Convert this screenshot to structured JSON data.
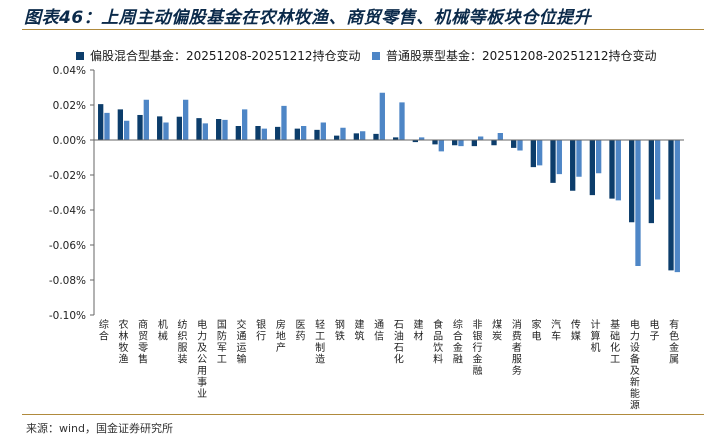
{
  "title": "图表46：上周主动偏股基金在农林牧渔、商贸零售、机械等板块仓位提升",
  "source": "来源：wind，国金证券研究所",
  "colors": {
    "series1": "#0c3d6b",
    "series2": "#4e86c6",
    "axis": "#666666",
    "rule": "#b08a3c"
  },
  "chart_data": {
    "type": "bar",
    "title": "图表46：上周主动偏股基金在农林牧渔、商贸零售、机械等板块仓位提升",
    "xlabel": "",
    "ylabel": "",
    "ylim": [
      -0.1,
      0.04
    ],
    "yticks": [
      0.04,
      0.02,
      0.0,
      -0.02,
      -0.04,
      -0.06,
      -0.08,
      -0.1
    ],
    "ytick_labels": [
      "0.04%",
      "0.02%",
      "0.00%",
      "-0.02%",
      "-0.04%",
      "-0.06%",
      "-0.08%",
      "-0.10%"
    ],
    "legend_position": "top",
    "categories": [
      "综合",
      "农林牧渔",
      "商贸零售",
      "机械",
      "纺织服装",
      "电力及公用事业",
      "国防军工",
      "交通运输",
      "银行",
      "房地产",
      "医药",
      "轻工制造",
      "钢铁",
      "建筑",
      "通信",
      "石油石化",
      "建材",
      "食品饮料",
      "综合金融",
      "非银行金融",
      "煤炭",
      "消费者服务",
      "家电",
      "汽车",
      "传媒",
      "计算机",
      "基础化工",
      "电力设备及新能源",
      "电子",
      "有色金属"
    ],
    "series": [
      {
        "name": "偏股混合型基金：20251208-20251212持仓变动",
        "values": [
          0.0205,
          0.0175,
          0.0143,
          0.0135,
          0.0133,
          0.0125,
          0.012,
          0.008,
          0.008,
          0.0075,
          0.0065,
          0.0058,
          0.0025,
          0.0038,
          0.0035,
          0.0015,
          -0.0012,
          -0.0025,
          -0.003,
          -0.0035,
          -0.003,
          -0.0045,
          -0.0155,
          -0.0245,
          -0.029,
          -0.0315,
          -0.0335,
          -0.047,
          -0.0475,
          -0.0745
        ]
      },
      {
        "name": "普通股票型基金：20251208-20251212持仓变动",
        "values": [
          0.0155,
          0.011,
          0.023,
          0.01,
          0.023,
          0.0095,
          0.0115,
          0.0175,
          0.0065,
          0.0195,
          0.008,
          0.01,
          0.007,
          0.005,
          0.027,
          0.0215,
          0.0015,
          -0.0065,
          -0.0035,
          0.002,
          0.004,
          -0.006,
          -0.0145,
          -0.0195,
          -0.021,
          -0.019,
          -0.0345,
          -0.072,
          -0.034,
          -0.0755
        ]
      }
    ]
  }
}
